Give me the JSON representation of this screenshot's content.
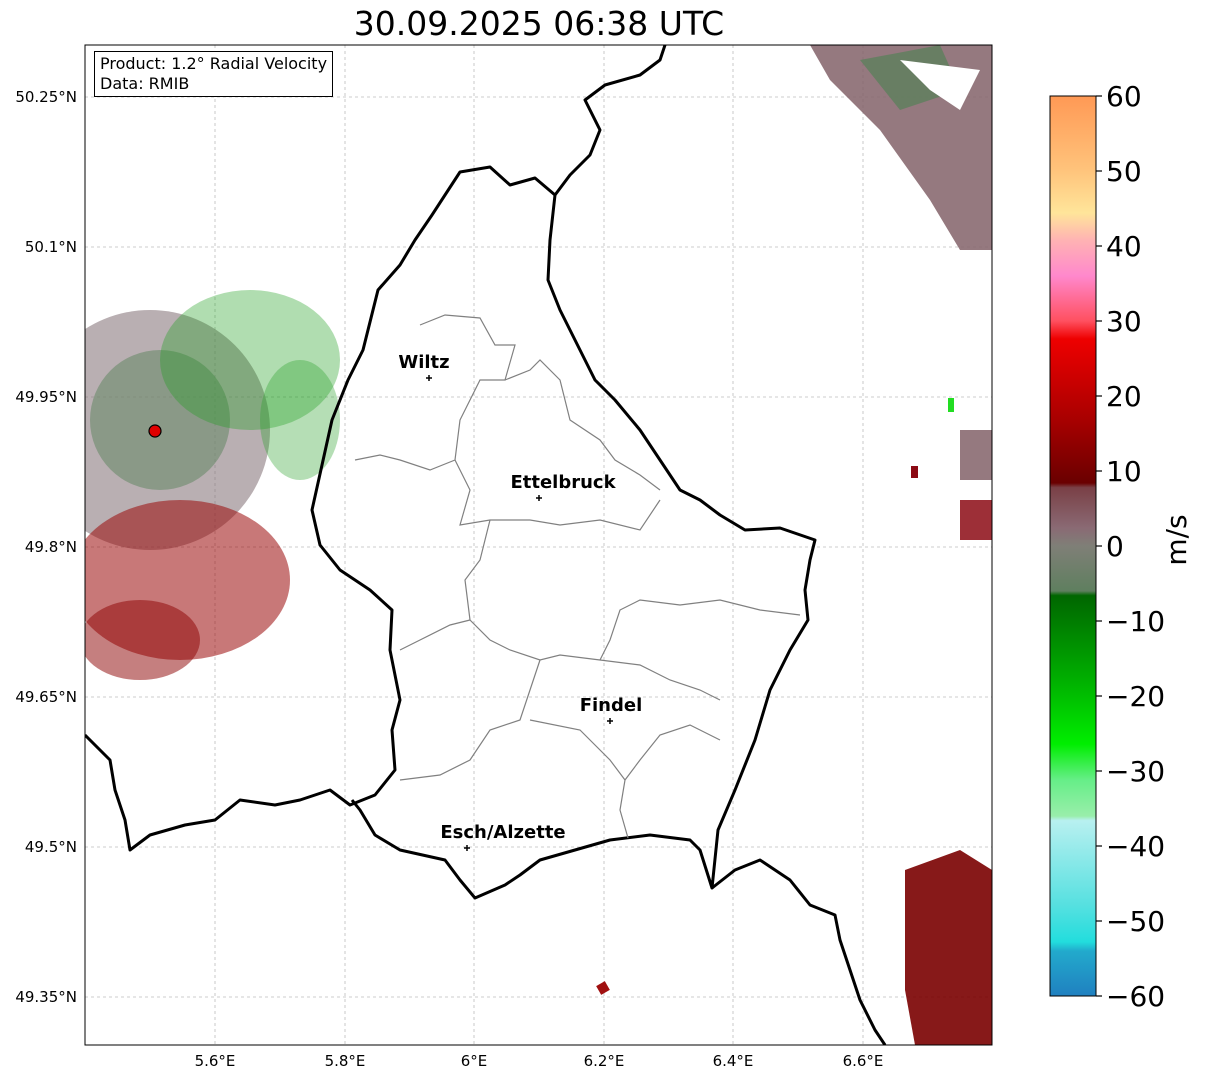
{
  "title": "30.09.2025 06:38 UTC",
  "info": {
    "product": "Product: 1.2° Radial Velocity",
    "source": "Data: RMIB"
  },
  "axes": {
    "lat_ticks": [
      "50.25°N",
      "50.1°N",
      "49.95°N",
      "49.8°N",
      "49.65°N",
      "49.5°N",
      "49.35°N"
    ],
    "lon_ticks": [
      "5.6°E",
      "5.8°E",
      "6°E",
      "6.2°E",
      "6.4°E",
      "6.6°E"
    ]
  },
  "cities": [
    {
      "name": "Wiltz"
    },
    {
      "name": "Ettelbruck"
    },
    {
      "name": "Findel"
    },
    {
      "name": "Esch/Alzette"
    }
  ],
  "colorbar": {
    "unit": "m/s",
    "ticks": [
      "60",
      "50",
      "40",
      "30",
      "20",
      "10",
      "0",
      "−10",
      "−20",
      "−30",
      "−40",
      "−50",
      "−60"
    ],
    "min": -60,
    "max": 60
  },
  "colors": {
    "border": "#000000",
    "district": "#808080",
    "radar_site": "#e00000"
  }
}
